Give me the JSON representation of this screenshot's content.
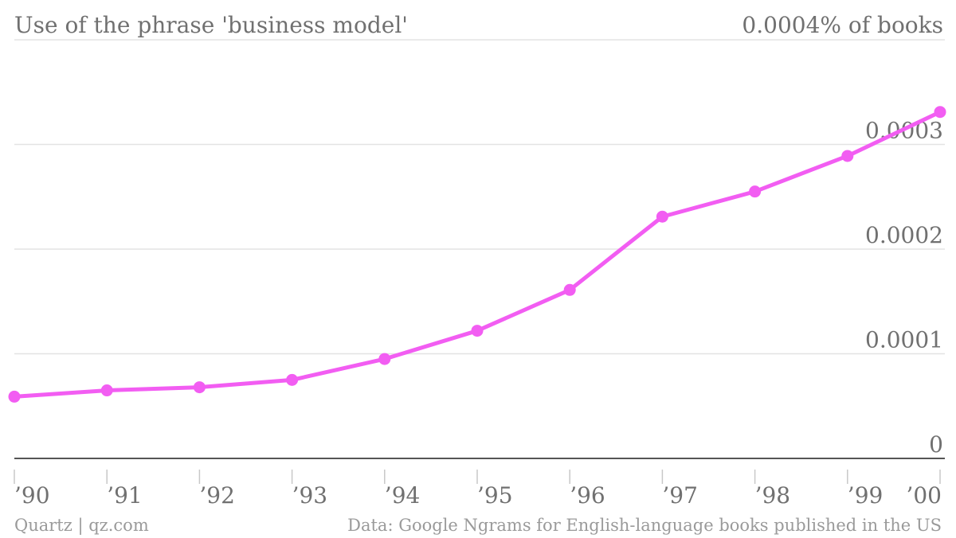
{
  "chart_data": {
    "type": "line",
    "title": "Use of the phrase 'business model'",
    "unit_label": "0.0004% of books",
    "x": [
      "’90",
      "’91",
      "’92",
      "’93",
      "’94",
      "’95",
      "’96",
      "’97",
      "’98",
      "’99",
      "’00"
    ],
    "series": [
      {
        "values": [
          5.9e-05,
          6.5e-05,
          6.8e-05,
          7.5e-05,
          9.5e-05,
          0.000122,
          0.000161,
          0.000231,
          0.000255,
          0.000289,
          0.000331
        ]
      }
    ],
    "ylim": [
      0,
      0.0004
    ],
    "yticks": [
      {
        "value": 0,
        "label": "0"
      },
      {
        "value": 0.0001,
        "label": "0.0001"
      },
      {
        "value": 0.0002,
        "label": "0.0002"
      },
      {
        "value": 0.0003,
        "label": "0.0003"
      }
    ],
    "grid": true,
    "line_color": "#f25df2",
    "source": "Data: Google Ngrams for English-language books published in the US",
    "credit": "Quartz | qz.com"
  }
}
